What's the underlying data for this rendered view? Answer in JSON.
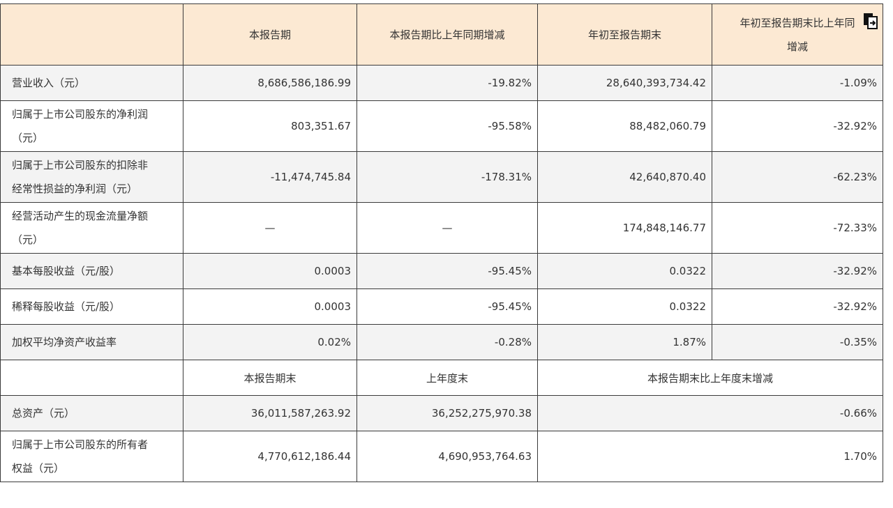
{
  "header": {
    "col1": "本报告期",
    "col2": "本报告期比上年同期增减",
    "col3": "年初至报告期末",
    "col4_line1": "年初至报告期末比上年同",
    "col4_line2": "增减"
  },
  "rows": [
    {
      "label": "营业收入（元）",
      "v1": "8,686,586,186.99",
      "v2": "-19.82%",
      "v3": "28,640,393,734.42",
      "v4": "-1.09%"
    },
    {
      "label_line1": "归属于上市公司股东的净利润",
      "label_line2": "（元）",
      "v1": "803,351.67",
      "v2": "-95.58%",
      "v3": "88,482,060.79",
      "v4": "-32.92%"
    },
    {
      "label_line1": "归属于上市公司股东的扣除非",
      "label_line2": "经常性损益的净利润（元）",
      "v1": "-11,474,745.84",
      "v2": "-178.31%",
      "v3": "42,640,870.40",
      "v4": "-62.23%"
    },
    {
      "label_line1": "经营活动产生的现金流量净额",
      "label_line2": "（元）",
      "v1": "—",
      "v2": "—",
      "v3": "174,848,146.77",
      "v4": "-72.33%"
    },
    {
      "label": "基本每股收益（元/股）",
      "v1": "0.0003",
      "v2": "-95.45%",
      "v3": "0.0322",
      "v4": "-32.92%"
    },
    {
      "label": "稀释每股收益（元/股）",
      "v1": "0.0003",
      "v2": "-95.45%",
      "v3": "0.0322",
      "v4": "-32.92%"
    },
    {
      "label": "加权平均净资产收益率",
      "v1": "0.02%",
      "v2": "-0.28%",
      "v3": "1.87%",
      "v4": "-0.35%"
    }
  ],
  "subheader": {
    "col1": "本报告期末",
    "col2": "上年度末",
    "col34": "本报告期末比上年度末增减"
  },
  "rows2": [
    {
      "label": "总资产（元）",
      "v1": "36,011,587,263.92",
      "v2": "36,252,275,970.38",
      "v34": "-0.66%"
    },
    {
      "label_line1": "归属于上市公司股东的所有者",
      "label_line2": "权益（元）",
      "v1": "4,770,612,186.44",
      "v2": "4,690,953,764.63",
      "v34": "1.70%"
    }
  ],
  "icons": {
    "copy": "copy-document-icon"
  },
  "colors": {
    "header_bg": "#fce9d3",
    "row_gray": "#f3f3f3",
    "border": "#3a3a3a"
  }
}
